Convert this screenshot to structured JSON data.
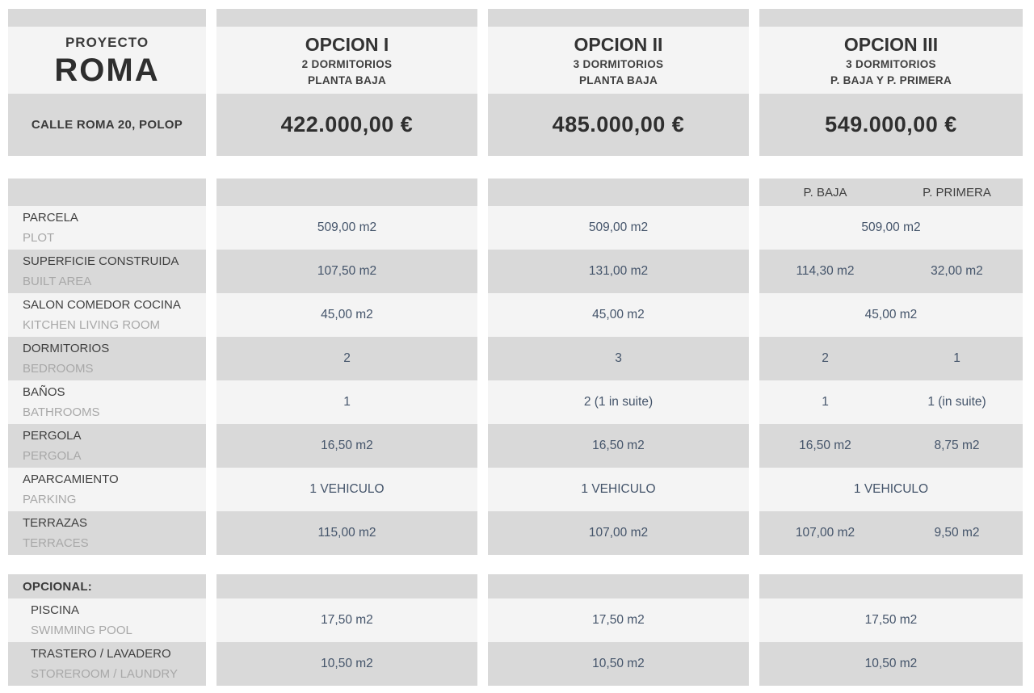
{
  "project": {
    "kicker": "PROYECTO",
    "name": "ROMA",
    "address": "CALLE ROMA 20, POLOP"
  },
  "options": [
    {
      "name": "OPCION I",
      "line1": "2 DORMITORIOS",
      "line2": "PLANTA BAJA",
      "price": "422.000,00 €"
    },
    {
      "name": "OPCION II",
      "line1": "3 DORMITORIOS",
      "line2": "PLANTA BAJA",
      "price": "485.000,00 €"
    },
    {
      "name": "OPCION III",
      "line1": "3 DORMITORIOS",
      "line2": "P. BAJA Y P. PRIMERA",
      "price": "549.000,00 €"
    }
  ],
  "subheader": {
    "baja": "P. BAJA",
    "primera": "P. PRIMERA"
  },
  "rows": [
    {
      "label_es": "PARCELA",
      "label_en": "PLOT",
      "opt1": "509,00 m2",
      "opt2": "509,00 m2",
      "opt3": "509,00 m2"
    },
    {
      "label_es": "SUPERFICIE CONSTRUIDA",
      "label_en": "BUILT AREA",
      "opt1": "107,50 m2",
      "opt2": "131,00 m2",
      "opt3_baja": "114,30 m2",
      "opt3_primera": "32,00 m2"
    },
    {
      "label_es": "SALON COMEDOR COCINA",
      "label_en": "KITCHEN LIVING ROOM",
      "opt1": "45,00 m2",
      "opt2": "45,00 m2",
      "opt3": "45,00 m2"
    },
    {
      "label_es": "DORMITORIOS",
      "label_en": "BEDROOMS",
      "opt1": "2",
      "opt2": "3",
      "opt3_baja": "2",
      "opt3_primera": "1"
    },
    {
      "label_es": "BAÑOS",
      "label_en": "BATHROOMS",
      "opt1": "1",
      "opt2": "2 (1 in suite)",
      "opt3_baja": "1",
      "opt3_primera": "1 (in suite)"
    },
    {
      "label_es": "PERGOLA",
      "label_en": "PERGOLA",
      "opt1": "16,50 m2",
      "opt2": "16,50 m2",
      "opt3_baja": "16,50 m2",
      "opt3_primera": "8,75 m2"
    },
    {
      "label_es": "APARCAMIENTO",
      "label_en": "PARKING",
      "opt1": "1 VEHICULO",
      "opt2": "1 VEHICULO",
      "opt3": "1 VEHICULO"
    },
    {
      "label_es": "TERRAZAS",
      "label_en": "TERRACES",
      "opt1": "115,00 m2",
      "opt2": "107,00 m2",
      "opt3_baja": "107,00 m2",
      "opt3_primera": "9,50 m2"
    }
  ],
  "optional": {
    "title": "OPCIONAL:",
    "rows": [
      {
        "label_es": "PISCINA",
        "label_en": "SWIMMING POOL",
        "opt1": "17,50 m2",
        "opt2": "17,50 m2",
        "opt3": "17,50 m2"
      },
      {
        "label_es": "TRASTERO / LAVADERO",
        "label_en": "STOREROOM / LAUNDRY",
        "opt1": "10,50 m2",
        "opt2": "10,50 m2",
        "opt3": "10,50 m2"
      }
    ]
  },
  "colors": {
    "grey_cell": "#d9d9d9",
    "light_cell": "#f4f4f4",
    "label_dark": "#3f3f3f",
    "label_faint": "#a8a8a8",
    "value_text": "#44546a"
  }
}
